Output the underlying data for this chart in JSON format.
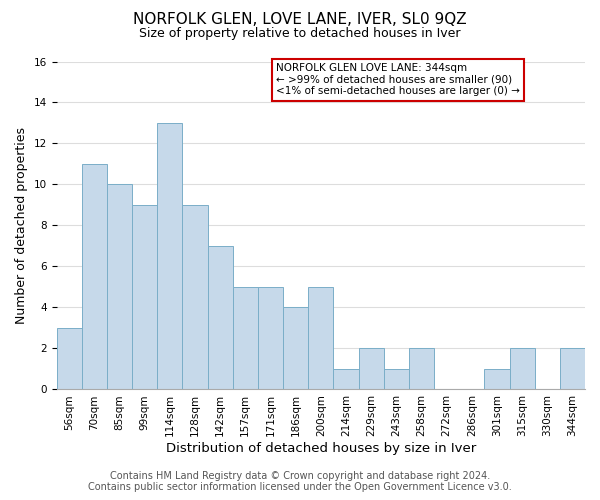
{
  "title": "NORFOLK GLEN, LOVE LANE, IVER, SL0 9QZ",
  "subtitle": "Size of property relative to detached houses in Iver",
  "xlabel": "Distribution of detached houses by size in Iver",
  "ylabel": "Number of detached properties",
  "bar_labels": [
    "56sqm",
    "70sqm",
    "85sqm",
    "99sqm",
    "114sqm",
    "128sqm",
    "142sqm",
    "157sqm",
    "171sqm",
    "186sqm",
    "200sqm",
    "214sqm",
    "229sqm",
    "243sqm",
    "258sqm",
    "272sqm",
    "286sqm",
    "301sqm",
    "315sqm",
    "330sqm",
    "344sqm"
  ],
  "bar_values": [
    3,
    11,
    10,
    9,
    13,
    9,
    7,
    5,
    5,
    4,
    5,
    1,
    2,
    1,
    2,
    0,
    0,
    1,
    2,
    0,
    2
  ],
  "bar_color": "#c6d9ea",
  "bar_edge_color": "#7aaec8",
  "ylim": [
    0,
    16
  ],
  "yticks": [
    0,
    2,
    4,
    6,
    8,
    10,
    12,
    14,
    16
  ],
  "legend_title": "NORFOLK GLEN LOVE LANE: 344sqm",
  "legend_line1": "← >99% of detached houses are smaller (90)",
  "legend_line2": "<1% of semi-detached houses are larger (0) →",
  "legend_box_color": "#ffffff",
  "legend_box_edge_color": "#cc0000",
  "footer1": "Contains HM Land Registry data © Crown copyright and database right 2024.",
  "footer2": "Contains public sector information licensed under the Open Government Licence v3.0.",
  "background_color": "#ffffff",
  "grid_color": "#dddddd",
  "title_fontsize": 11,
  "subtitle_fontsize": 9,
  "xlabel_fontsize": 9.5,
  "ylabel_fontsize": 9,
  "tick_fontsize": 7.5,
  "footer_fontsize": 7
}
